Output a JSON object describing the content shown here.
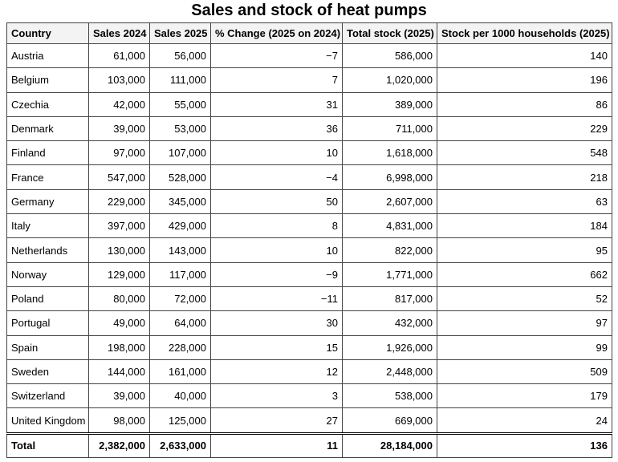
{
  "title": "Sales and stock of heat pumps",
  "table": {
    "header": [
      "Country",
      "Sales 2024",
      "Sales 2025",
      "% Change (2025 on 2024)",
      "Total stock (2025)",
      "Stock per 1000 households (2025)"
    ],
    "rows": [
      [
        "Austria",
        "61,000",
        "56,000",
        "−7",
        "586,000",
        "140"
      ],
      [
        "Belgium",
        "103,000",
        "111,000",
        "7",
        "1,020,000",
        "196"
      ],
      [
        "Czechia",
        "42,000",
        "55,000",
        "31",
        "389,000",
        "86"
      ],
      [
        "Denmark",
        "39,000",
        "53,000",
        "36",
        "711,000",
        "229"
      ],
      [
        "Finland",
        "97,000",
        "107,000",
        "10",
        "1,618,000",
        "548"
      ],
      [
        "France",
        "547,000",
        "528,000",
        "−4",
        "6,998,000",
        "218"
      ],
      [
        "Germany",
        "229,000",
        "345,000",
        "50",
        "2,607,000",
        "63"
      ],
      [
        "Italy",
        "397,000",
        "429,000",
        "8",
        "4,831,000",
        "184"
      ],
      [
        "Netherlands",
        "130,000",
        "143,000",
        "10",
        "822,000",
        "95"
      ],
      [
        "Norway",
        "129,000",
        "117,000",
        "−9",
        "1,771,000",
        "662"
      ],
      [
        "Poland",
        "80,000",
        "72,000",
        "−11",
        "817,000",
        "52"
      ],
      [
        "Portugal",
        "49,000",
        "64,000",
        "30",
        "432,000",
        "97"
      ],
      [
        "Spain",
        "198,000",
        "228,000",
        "15",
        "1,926,000",
        "99"
      ],
      [
        "Sweden",
        "144,000",
        "161,000",
        "12",
        "2,448,000",
        "509"
      ],
      [
        "Switzerland",
        "39,000",
        "40,000",
        "3",
        "538,000",
        "179"
      ],
      [
        "United Kingdom",
        "98,000",
        "125,000",
        "27",
        "669,000",
        "24"
      ]
    ],
    "total": [
      "Total",
      "2,382,000",
      "2,633,000",
      "11",
      "28,184,000",
      "136"
    ]
  }
}
